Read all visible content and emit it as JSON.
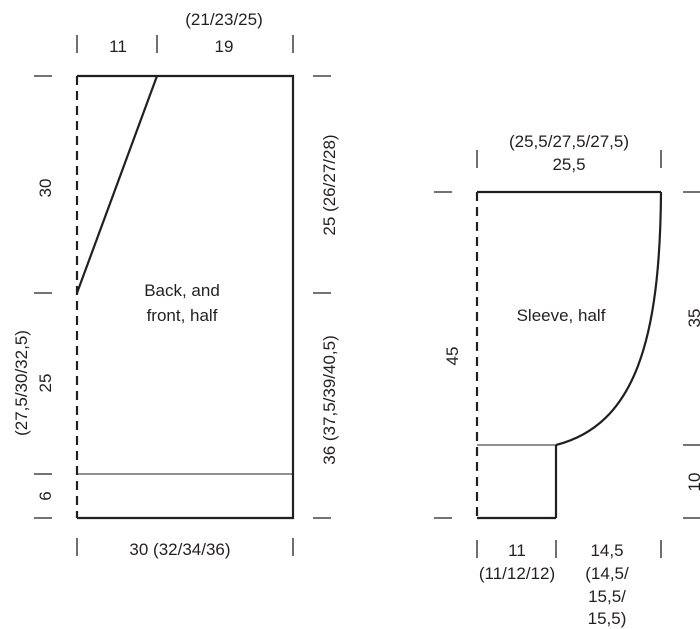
{
  "body_piece": {
    "label_line1": "Back, and",
    "label_line2": "front, half",
    "top_left_width": "11",
    "top_right_width_alt": "(21/23/25)",
    "top_right_width": "19",
    "left_upper_height": "30",
    "left_lower_height_alt": "(27,5/30/32,5)",
    "left_lower_height": "25",
    "left_rib_height": "6",
    "right_upper_height": "25 (26/27/28)",
    "right_lower_height": "36 (37,5/39/40,5)",
    "bottom_width": "30 (32/34/36)"
  },
  "sleeve_piece": {
    "label": "Sleeve, half",
    "top_width_alt": "(25,5/27,5/27,5)",
    "top_width": "25,5",
    "left_height": "45",
    "right_height_top": "35",
    "right_height_bottom": "10",
    "bottom_left_width": "11",
    "bottom_left_width_alt": "(11/12/12)",
    "bottom_right_width_line1": "14,5",
    "bottom_right_width_line2": "(14,5/",
    "bottom_right_width_line3": "15,5/",
    "bottom_right_width_line4": "15,5)"
  }
}
